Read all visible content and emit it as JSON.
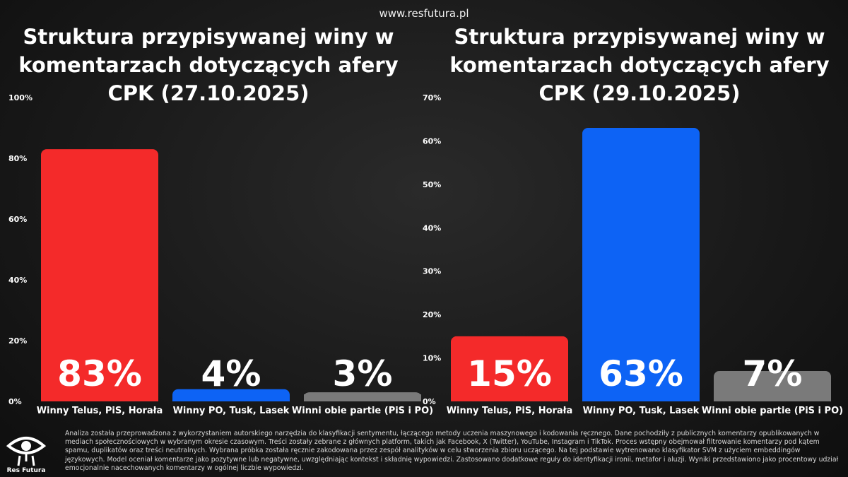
{
  "site_url": "www.resfutura.pl",
  "logo_text": "Res Futura",
  "footer_text": "Analiza została przeprowadzona z wykorzystaniem autorskiego narzędzia do klasyfikacji sentymentu, łączącego metody uczenia maszynowego i kodowania ręcznego. Dane pochodziły z publicznych komentarzy opublikowanych w mediach społecznościowych w wybranym okresie czasowym. Treści zostały zebrane z głównych platform, takich jak Facebook, X (Twitter), YouTube, Instagram i TikTok. Proces wstępny obejmował filtrowanie komentarzy pod kątem spamu, duplikatów oraz treści neutralnych. Wybrana próbka została ręcznie zakodowana przez zespół analityków w celu stworzenia zbioru uczącego. Na tej podstawie wytrenowano klasyfikator SVM z użyciem embeddingów językowych. Model oceniał komentarze jako pozytywne lub negatywne, uwzględniając kontekst i składnię wypowiedzi. Zastosowano dodatkowe reguły do identyfikacji ironii, metafor i aluzji. Wyniki przedstawiono jako procentowy udział emocjonalnie nacechowanych komentarzy w ogólnej liczbie wypowiedzi.",
  "chart_data": [
    {
      "type": "bar",
      "title": "Struktura przypisywanej winy w komentarzach dotyczących afery CPK (27.10.2025)",
      "categories": [
        "Winny Telus, PiS, Horała",
        "Winny PO, Tusk, Lasek",
        "Winni obie partie (PiS i PO)"
      ],
      "values": [
        83,
        4,
        3
      ],
      "value_labels": [
        "83%",
        "4%",
        "3%"
      ],
      "colors": [
        "#f42a2a",
        "#0d63f5",
        "#7a7a7a"
      ],
      "ylim": [
        0,
        100
      ],
      "yticks": [
        0,
        20,
        40,
        60,
        80,
        100
      ],
      "ytick_labels": [
        "0%",
        "20%",
        "40%",
        "60%",
        "80%",
        "100%"
      ],
      "grid": false
    },
    {
      "type": "bar",
      "title": "Struktura przypisywanej winy w komentarzach dotyczących afery CPK (29.10.2025)",
      "categories": [
        "Winny Telus, PiS, Horała",
        "Winny PO, Tusk, Lasek",
        "Winni obie partie (PiS i PO)"
      ],
      "values": [
        15,
        63,
        7
      ],
      "value_labels": [
        "15%",
        "63%",
        "7%"
      ],
      "colors": [
        "#f42a2a",
        "#0d63f5",
        "#7a7a7a"
      ],
      "ylim": [
        0,
        70
      ],
      "yticks": [
        0,
        10,
        20,
        30,
        40,
        50,
        60,
        70
      ],
      "ytick_labels": [
        "0%",
        "10%",
        "20%",
        "30%",
        "40%",
        "50%",
        "60%",
        "70%"
      ],
      "grid": false
    }
  ]
}
